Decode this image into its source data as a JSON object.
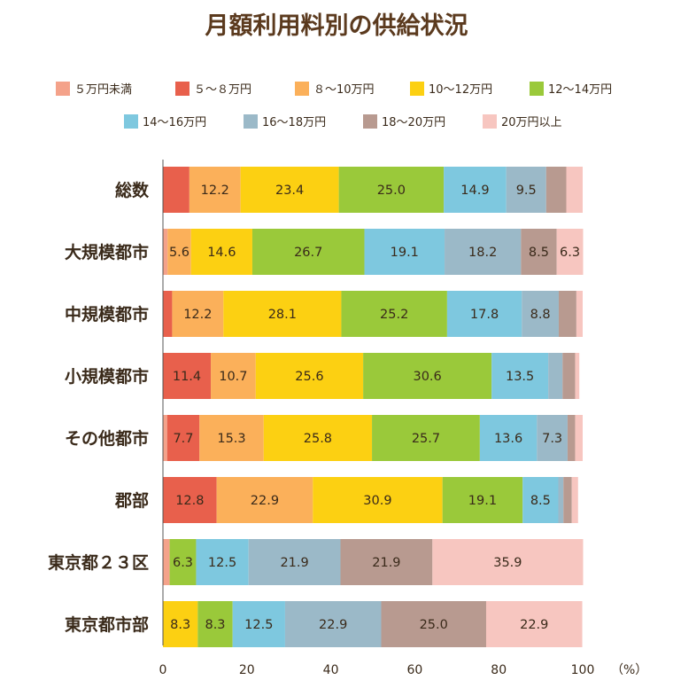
{
  "chart_data": {
    "type": "bar",
    "orientation": "horizontal",
    "stacked": true,
    "title": "月額利用料別の供給状況",
    "categories": [
      "総数",
      "大規模都市",
      "中規模都市",
      "小規模都市",
      "その他都市",
      "郡部",
      "東京都２３区",
      "東京都市部"
    ],
    "series": [
      {
        "name": "５万円未満",
        "color": "#f4a28a",
        "values": [
          0.0,
          1.1,
          0.0,
          0.0,
          1.0,
          0.0,
          1.6,
          0.0
        ]
      },
      {
        "name": "５～８万円",
        "color": "#e8604c",
        "values": [
          6.3,
          0.0,
          2.2,
          11.4,
          7.7,
          12.8,
          0.0,
          0.0
        ]
      },
      {
        "name": "８～10万円",
        "color": "#fbb05a",
        "values": [
          12.2,
          5.6,
          12.2,
          10.7,
          15.3,
          22.9,
          0.0,
          0.0
        ]
      },
      {
        "name": "10～12万円",
        "color": "#fcd012",
        "values": [
          23.4,
          14.6,
          28.1,
          25.6,
          25.8,
          30.9,
          0.0,
          8.3
        ]
      },
      {
        "name": "12～14万円",
        "color": "#9ac93a",
        "values": [
          25.0,
          26.7,
          25.2,
          30.6,
          25.7,
          19.1,
          6.3,
          8.3
        ]
      },
      {
        "name": "14～16万円",
        "color": "#7ec8df",
        "values": [
          14.9,
          19.1,
          17.8,
          13.5,
          13.6,
          8.5,
          12.5,
          12.5
        ]
      },
      {
        "name": "16～18万円",
        "color": "#9bb9c8",
        "values": [
          9.5,
          18.2,
          8.8,
          3.4,
          7.3,
          1.2,
          21.9,
          22.9
        ]
      },
      {
        "name": "18～20万円",
        "color": "#b89a90",
        "values": [
          4.8,
          8.5,
          4.2,
          3.0,
          1.8,
          2.0,
          21.9,
          25.0
        ]
      },
      {
        "name": "20万円以上",
        "color": "#f7c6c0",
        "values": [
          3.9,
          6.3,
          1.5,
          1.0,
          1.8,
          1.5,
          35.9,
          22.9
        ]
      }
    ],
    "data_labels": [
      [
        null,
        null,
        "12.2",
        "23.4",
        "25.0",
        "14.9",
        "9.5",
        null,
        null
      ],
      [
        null,
        null,
        "5.6",
        "14.6",
        "26.7",
        "19.1",
        "18.2",
        "8.5",
        "6.3"
      ],
      [
        null,
        null,
        "12.2",
        "28.1",
        "25.2",
        "17.8",
        "8.8",
        null,
        null
      ],
      [
        null,
        "11.4",
        "10.7",
        "25.6",
        "30.6",
        "13.5",
        null,
        null,
        null
      ],
      [
        null,
        "7.7",
        "15.3",
        "25.8",
        "25.7",
        "13.6",
        "7.3",
        null,
        null
      ],
      [
        null,
        "12.8",
        "22.9",
        "30.9",
        "19.1",
        "8.5",
        null,
        null,
        null
      ],
      [
        null,
        null,
        null,
        null,
        "6.3",
        "12.5",
        "21.9",
        "21.9",
        "35.9"
      ],
      [
        null,
        null,
        null,
        "8.3",
        "8.3",
        "12.5",
        "22.9",
        "25.0",
        "22.9"
      ]
    ],
    "xlim": [
      0,
      100
    ],
    "xticks": [
      "0",
      "20",
      "40",
      "60",
      "80",
      "100"
    ],
    "unit": "（%）",
    "legend_position": "top"
  }
}
